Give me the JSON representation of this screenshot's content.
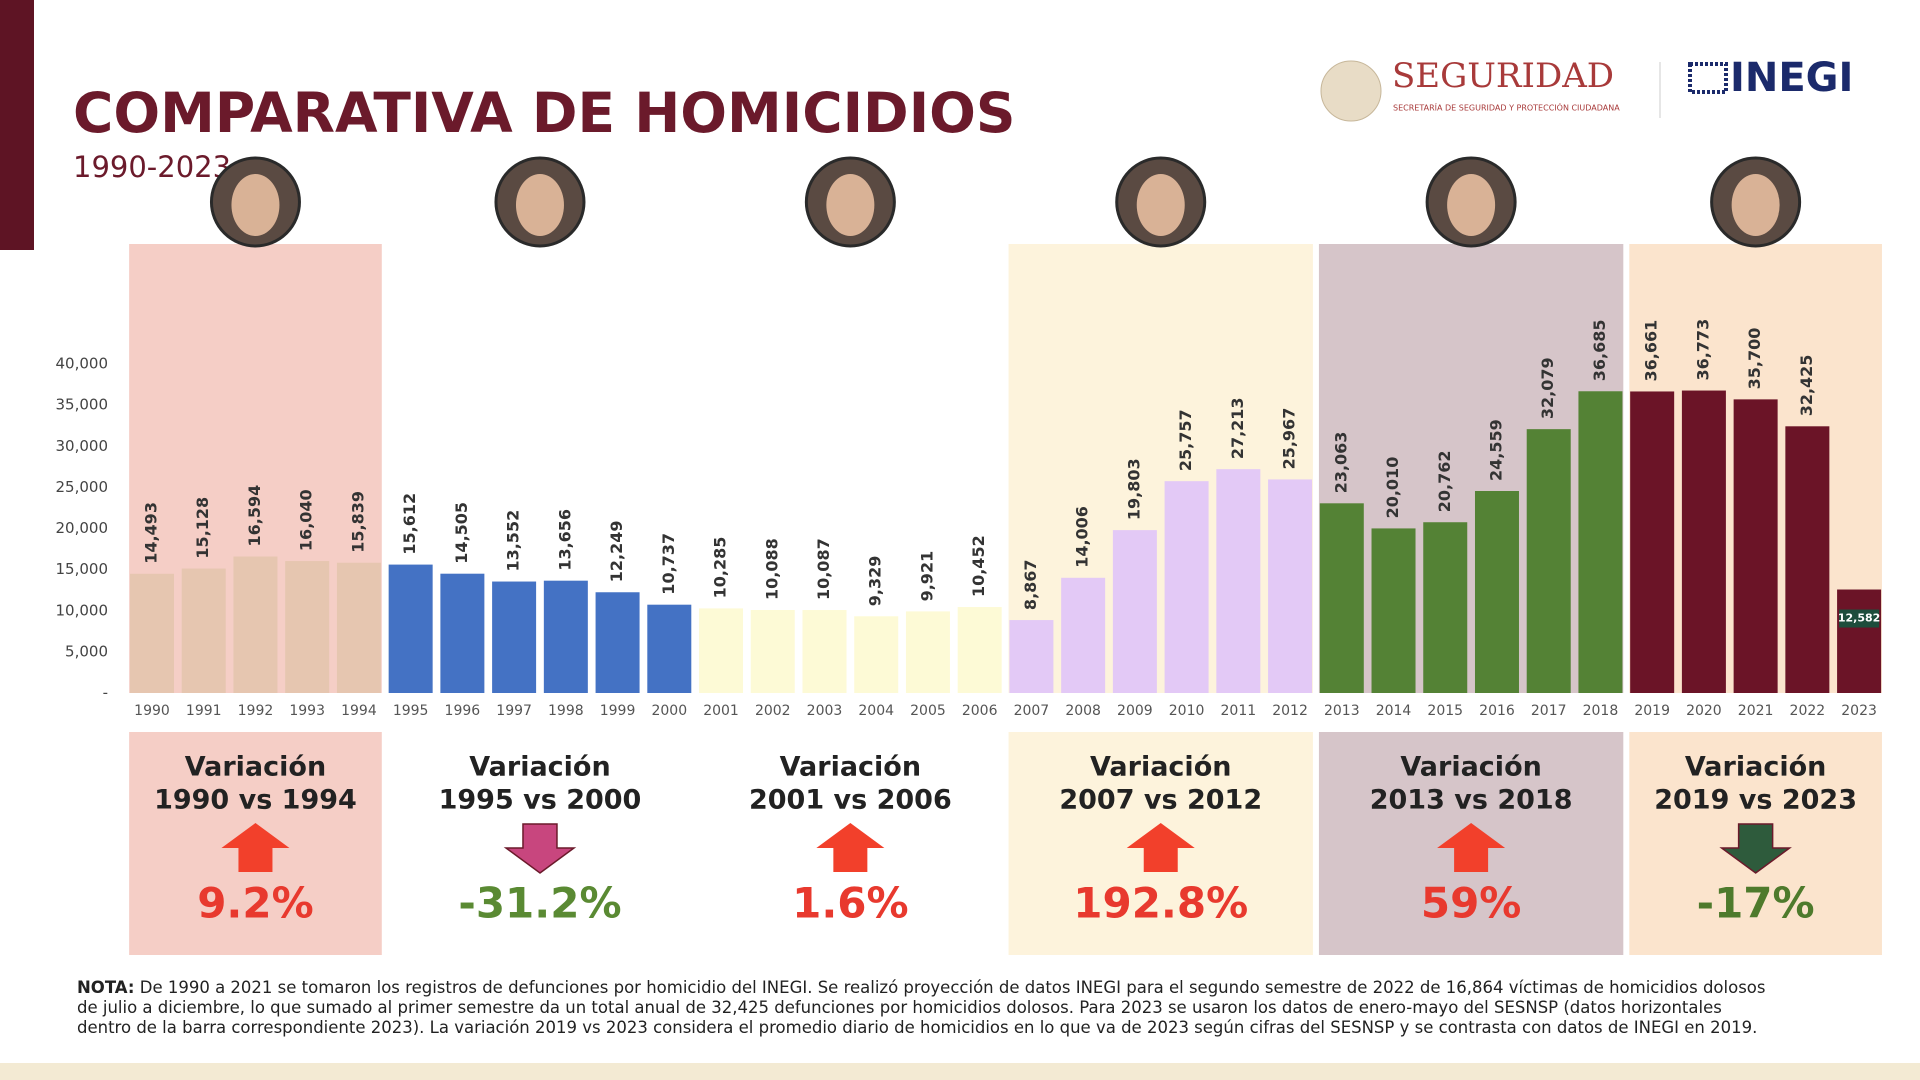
{
  "header": {
    "title": "COMPARATIVA DE HOMICIDIOS",
    "subtitle": "1990-2023",
    "logo_seguridad": "SEGURIDAD",
    "logo_seguridad_sub": "SECRETARÍA DE SEGURIDAD Y PROTECCIÓN CIUDADANA",
    "logo_inegi": "INEGI"
  },
  "chart_data": {
    "type": "bar",
    "categories": [
      "1990",
      "1991",
      "1992",
      "1993",
      "1994",
      "1995",
      "1996",
      "1997",
      "1998",
      "1999",
      "2000",
      "2001",
      "2002",
      "2003",
      "2004",
      "2005",
      "2006",
      "2007",
      "2008",
      "2009",
      "2010",
      "2011",
      "2012",
      "2013",
      "2014",
      "2015",
      "2016",
      "2017",
      "2018",
      "2019",
      "2020",
      "2021",
      "2022",
      "2023"
    ],
    "values": [
      14493,
      15128,
      16594,
      16040,
      15839,
      15612,
      14505,
      13552,
      13656,
      12249,
      10737,
      10285,
      10088,
      10087,
      9329,
      9921,
      10452,
      8867,
      14006,
      19803,
      25757,
      27213,
      25967,
      23063,
      20010,
      20762,
      24559,
      32079,
      36685,
      36661,
      36773,
      35700,
      32425,
      12582
    ],
    "value_labels": [
      "14,493",
      "15,128",
      "16,594",
      "16,040",
      "15,839",
      "15,612",
      "14,505",
      "13,552",
      "13,656",
      "12,249",
      "10,737",
      "10,285",
      "10,088",
      "10,087",
      "9,329",
      "9,921",
      "10,452",
      "8,867",
      "14,006",
      "19,803",
      "25,757",
      "27,213",
      "25,967",
      "23,063",
      "20,010",
      "20,762",
      "24,559",
      "32,079",
      "36,685",
      "36,661",
      "36,773",
      "35,700",
      "32,425",
      "12,582"
    ],
    "last_label_inside": true,
    "ylim": [
      0,
      40000
    ],
    "yticks": [
      {
        "value": 0,
        "label": "-"
      },
      {
        "value": 5000,
        "label": "5,000"
      },
      {
        "value": 10000,
        "label": "10,000"
      },
      {
        "value": 15000,
        "label": "15,000"
      },
      {
        "value": 20000,
        "label": "20,000"
      },
      {
        "value": 25000,
        "label": "25,000"
      },
      {
        "value": 30000,
        "label": "30,000"
      },
      {
        "value": 35000,
        "label": "35,000"
      },
      {
        "value": 40000,
        "label": "40,000"
      }
    ],
    "grid": false
  },
  "periods": [
    {
      "title": "Variación",
      "range": "1990 vs 1994",
      "change": "9.2%",
      "direction": "up",
      "background": "#f5cec6",
      "bar_color": "#e6c6b0",
      "arrow_color": "#f2402b",
      "change_color": "#e8392e"
    },
    {
      "title": "Variación",
      "range": "1995 vs 2000",
      "change": "-31.2%",
      "direction": "down",
      "background": "#ffffff",
      "bar_color": "#4472c4",
      "arrow_color": "#c8467e",
      "change_color": "#5a8a33"
    },
    {
      "title": "Variación",
      "range": "2001 vs 2006",
      "change": "1.6%",
      "direction": "up",
      "background": "#ffffff",
      "bar_color": "#fdfad6",
      "arrow_color": "#f2402b",
      "change_color": "#e8392e"
    },
    {
      "title": "Variación",
      "range": "2007 vs 2012",
      "change": "192.8%",
      "direction": "up",
      "background": "#fdf3dc",
      "bar_color": "#e3c9f6",
      "arrow_color": "#f2402b",
      "change_color": "#e8392e"
    },
    {
      "title": "Variación",
      "range": "2013 vs 2018",
      "change": "59%",
      "direction": "up",
      "background": "#d6c5c9",
      "bar_color": "#548235",
      "arrow_color": "#f2402b",
      "change_color": "#e8392e"
    },
    {
      "title": "Variación",
      "range": "2019 vs 2023",
      "change": "-17%",
      "direction": "down",
      "background": "#fbe4cd",
      "bar_color": "#6b1427",
      "arrow_color": "#2e5b3c",
      "change_color": "#4e7a2c"
    }
  ],
  "note": {
    "label": "NOTA:",
    "text": "De 1990 a 2021 se tomaron los registros de defunciones por homicidio del INEGI. Se realizó proyección de datos INEGI para el segundo semestre de 2022 de 16,864 víctimas de homicidios dolosos de julio a diciembre, lo que sumado al primer semestre da un total anual de 32,425 defunciones por homicidios dolosos. Para 2023 se usaron los datos de enero-mayo del SESNSP (datos horizontales dentro de la barra correspondiente 2023). La variación 2019 vs 2023 considera el promedio diario de homicidios en lo que va de 2023 según cifras del SESNSP y se contrasta con datos de INEGI en 2019."
  }
}
